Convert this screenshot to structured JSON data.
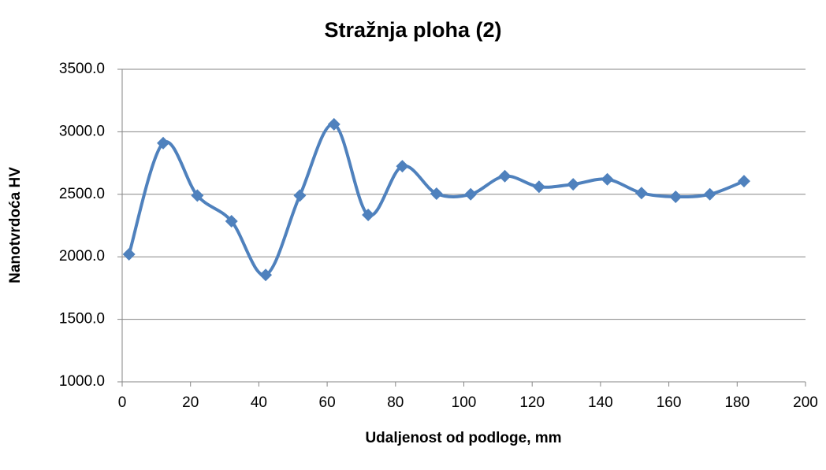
{
  "chart_data": {
    "type": "scatter",
    "title": "Stražnja ploha (2)",
    "x_label": "Udaljenost od podloge, mm",
    "y_label": "Nanotvrdoća HV",
    "series": [
      {
        "name": "Stražnja ploha (2)",
        "color": "#4f81bd",
        "x": [
          2,
          12,
          22,
          32,
          42,
          52,
          62,
          72,
          82,
          92,
          102,
          112,
          122,
          132,
          142,
          152,
          162,
          172,
          182
        ],
        "values": [
          2020,
          2910,
          2490,
          2285,
          1855,
          2490,
          3060,
          2335,
          2725,
          2505,
          2500,
          2645,
          2560,
          2580,
          2620,
          2510,
          2480,
          2500,
          2605
        ]
      }
    ],
    "xlim": [
      0,
      200
    ],
    "xticks": [
      0,
      20,
      40,
      60,
      80,
      100,
      120,
      140,
      160,
      180,
      200
    ],
    "ylim": [
      1000,
      3500
    ],
    "yticks": [
      {
        "value": 1000,
        "label": "1000.0"
      },
      {
        "value": 1500,
        "label": "1500.0"
      },
      {
        "value": 2000,
        "label": "2000.0"
      },
      {
        "value": 2500,
        "label": "2500.0"
      },
      {
        "value": 3000,
        "label": "3000.0"
      },
      {
        "value": 3500,
        "label": "3500.0"
      }
    ],
    "grid": true,
    "smooth": true
  }
}
